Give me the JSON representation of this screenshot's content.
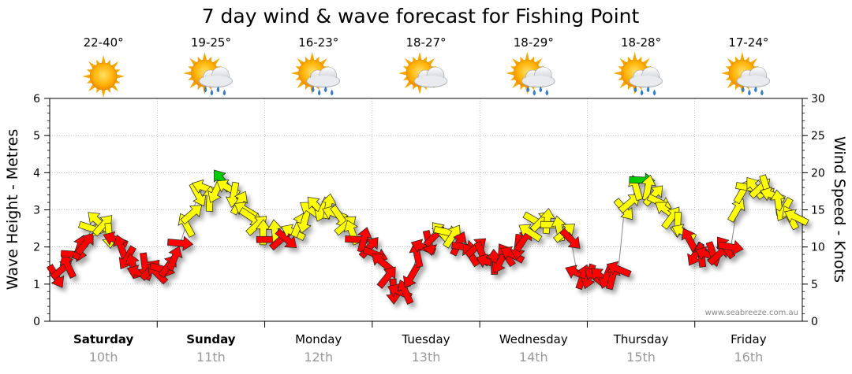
{
  "title": "7 day wind & wave forecast for Fishing Point",
  "watermark": "www.seabreeze.com.au",
  "days": [
    {
      "name": "Saturday",
      "date": "10th",
      "temp": "22-40°",
      "icon": "sunny-icon",
      "bold": true
    },
    {
      "name": "Sunday",
      "date": "11th",
      "temp": "19-25°",
      "icon": "sun-cloud-rain-icon",
      "bold": true
    },
    {
      "name": "Monday",
      "date": "12th",
      "temp": "16-23°",
      "icon": "sun-cloud-rain-icon",
      "bold": false
    },
    {
      "name": "Tuesday",
      "date": "13th",
      "temp": "18-27°",
      "icon": "sun-cloud-icon",
      "bold": false
    },
    {
      "name": "Wednesday",
      "date": "14th",
      "temp": "18-29°",
      "icon": "sun-cloud-rain-icon",
      "bold": false
    },
    {
      "name": "Thursday",
      "date": "15th",
      "temp": "18-28°",
      "icon": "sun-cloud-rain-icon",
      "bold": false
    },
    {
      "name": "Friday",
      "date": "16th",
      "temp": "17-24°",
      "icon": "sun-cloud-rain-icon",
      "bold": false
    }
  ],
  "chart_data": {
    "type": "line",
    "title": "7 day wind & wave forecast for Fishing Point",
    "ylabel_left": "Wave Height - Metres",
    "ylabel_right": "Wind Speed - Knots",
    "ylim_left": [
      0,
      6
    ],
    "ylim_right": [
      0,
      30
    ],
    "yticks_left": [
      0,
      1,
      2,
      3,
      4,
      5,
      6
    ],
    "yticks_right": [
      0,
      5,
      10,
      15,
      20,
      25,
      30
    ],
    "grid": true,
    "colors": {
      "strong": "#ff0000",
      "moderate": "#ffff00",
      "light": "#00cc00"
    },
    "x_unit": "day",
    "wind_speed_knots": [
      5,
      7,
      8,
      10,
      10,
      9,
      13,
      14,
      13,
      12,
      11,
      10,
      8,
      7,
      6,
      8,
      7,
      6,
      7,
      8,
      9,
      11,
      13,
      14,
      17,
      18,
      16,
      17,
      19,
      18,
      17,
      16,
      15,
      14,
      13,
      12,
      11,
      12,
      11,
      11,
      12,
      13,
      13,
      15,
      16,
      15,
      16,
      15,
      14,
      13,
      12,
      11,
      11,
      10,
      9,
      8,
      6,
      4,
      4,
      4,
      6,
      9,
      10,
      10,
      11,
      12,
      12,
      12,
      11,
      10,
      9,
      10,
      9,
      8,
      8,
      8,
      9,
      9,
      10,
      11,
      12,
      14,
      14,
      14,
      13,
      13,
      12,
      11,
      6,
      6,
      6,
      6,
      6,
      6,
      6,
      7,
      15,
      16,
      18,
      19,
      18,
      17,
      16,
      15,
      14,
      13,
      12,
      11,
      9,
      9,
      9,
      9,
      9,
      10,
      10,
      15,
      17,
      18,
      18,
      18,
      18,
      17,
      16,
      15,
      14,
      14
    ],
    "wave_height_metres": [
      1.2,
      1.4,
      1.5,
      1.8,
      2.0,
      2.1,
      2.5,
      2.7,
      2.6,
      2.3,
      2.2,
      2.0,
      1.7,
      1.5,
      1.3,
      1.5,
      1.4,
      1.3,
      1.4,
      1.5,
      1.7,
      2.1,
      2.6,
      2.9,
      3.4,
      3.6,
      3.3,
      3.5,
      3.8,
      3.6,
      3.4,
      3.2,
      3.0,
      2.8,
      2.6,
      2.4,
      2.2,
      2.4,
      2.2,
      2.2,
      2.4,
      2.6,
      2.7,
      3.0,
      3.1,
      3.0,
      3.1,
      2.9,
      2.8,
      2.6,
      2.4,
      2.2,
      2.2,
      2.0,
      1.8,
      1.6,
      1.2,
      0.8,
      0.8,
      0.8,
      1.2,
      1.8,
      2.0,
      2.1,
      2.3,
      2.4,
      2.4,
      2.3,
      2.1,
      2.0,
      1.8,
      2.0,
      1.8,
      1.6,
      1.6,
      1.6,
      1.8,
      1.8,
      2.0,
      2.2,
      2.4,
      2.7,
      2.7,
      2.7,
      2.6,
      2.5,
      2.4,
      2.2,
      1.3,
      1.2,
      1.2,
      1.2,
      1.2,
      1.2,
      1.2,
      1.4,
      3.0,
      3.2,
      3.6,
      3.8,
      3.6,
      3.4,
      3.2,
      3.0,
      2.8,
      2.6,
      2.4,
      2.2,
      1.8,
      1.8,
      1.8,
      1.8,
      1.8,
      2.0,
      2.0,
      3.0,
      3.5,
      3.6,
      3.6,
      3.6,
      3.6,
      3.4,
      3.2,
      3.0,
      2.8,
      2.8
    ]
  }
}
